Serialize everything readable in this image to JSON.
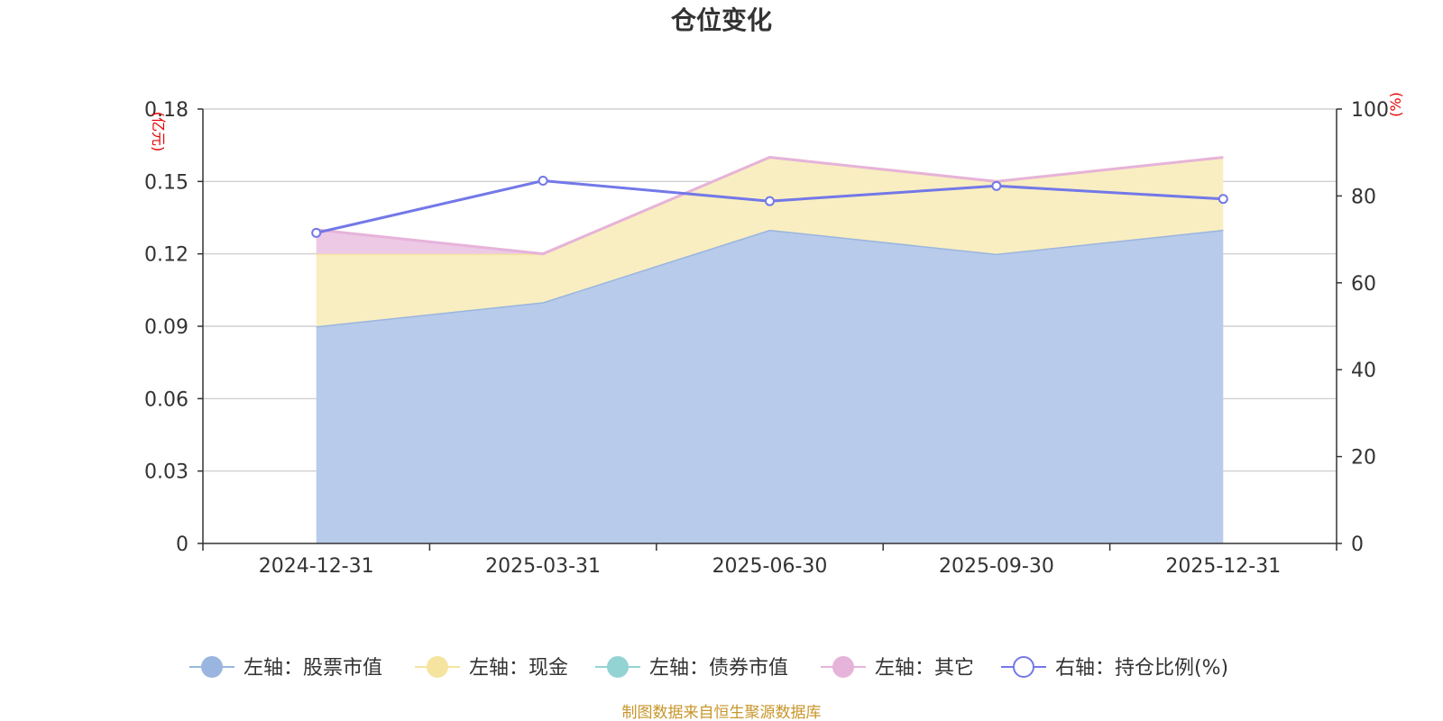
{
  "chart_data": {
    "type": "area",
    "title": "仓位变化",
    "categories": [
      "2024-12-31",
      "2025-03-31",
      "2025-06-30",
      "2025-09-30",
      "2025-12-31"
    ],
    "left_axis": {
      "unit": "(亿元)",
      "ylim": [
        0,
        0.18
      ],
      "ticks": [
        "0",
        "0.03",
        "0.06",
        "0.09",
        "0.12",
        "0.15",
        "0.18"
      ]
    },
    "right_axis": {
      "unit": "(%)",
      "ylim": [
        0,
        100
      ],
      "ticks": [
        "0",
        "20",
        "40",
        "60",
        "80",
        "100"
      ]
    },
    "stacked_series": [
      {
        "name": "左轴：股票市值",
        "values": [
          0.09,
          0.1,
          0.13,
          0.12,
          0.13
        ],
        "color": "#9ab5e0",
        "fill": "#b8cbea"
      },
      {
        "name": "左轴：现金",
        "values": [
          0.03,
          0.02,
          0.03,
          0.03,
          0.03
        ],
        "color": "#f5e49f",
        "fill": "#f9eec1"
      },
      {
        "name": "左轴：债券市值",
        "values": [
          0,
          0,
          0,
          0,
          0
        ],
        "color": "#93d3d3",
        "fill": "#b8e3e3"
      },
      {
        "name": "左轴：其它",
        "values": [
          0.01,
          0.0,
          0.0,
          0.0,
          0.0
        ],
        "color": "#e6b3da",
        "fill": "#edc9e6"
      }
    ],
    "line_series": {
      "name": "右轴：持仓比例(%)",
      "values": [
        71.5,
        83.5,
        78.8,
        82.3,
        79.3
      ],
      "color": "#7378e8"
    },
    "grid": true,
    "legend_position": "bottom-center",
    "source_note": "制图数据来自恒生聚源数据库"
  }
}
